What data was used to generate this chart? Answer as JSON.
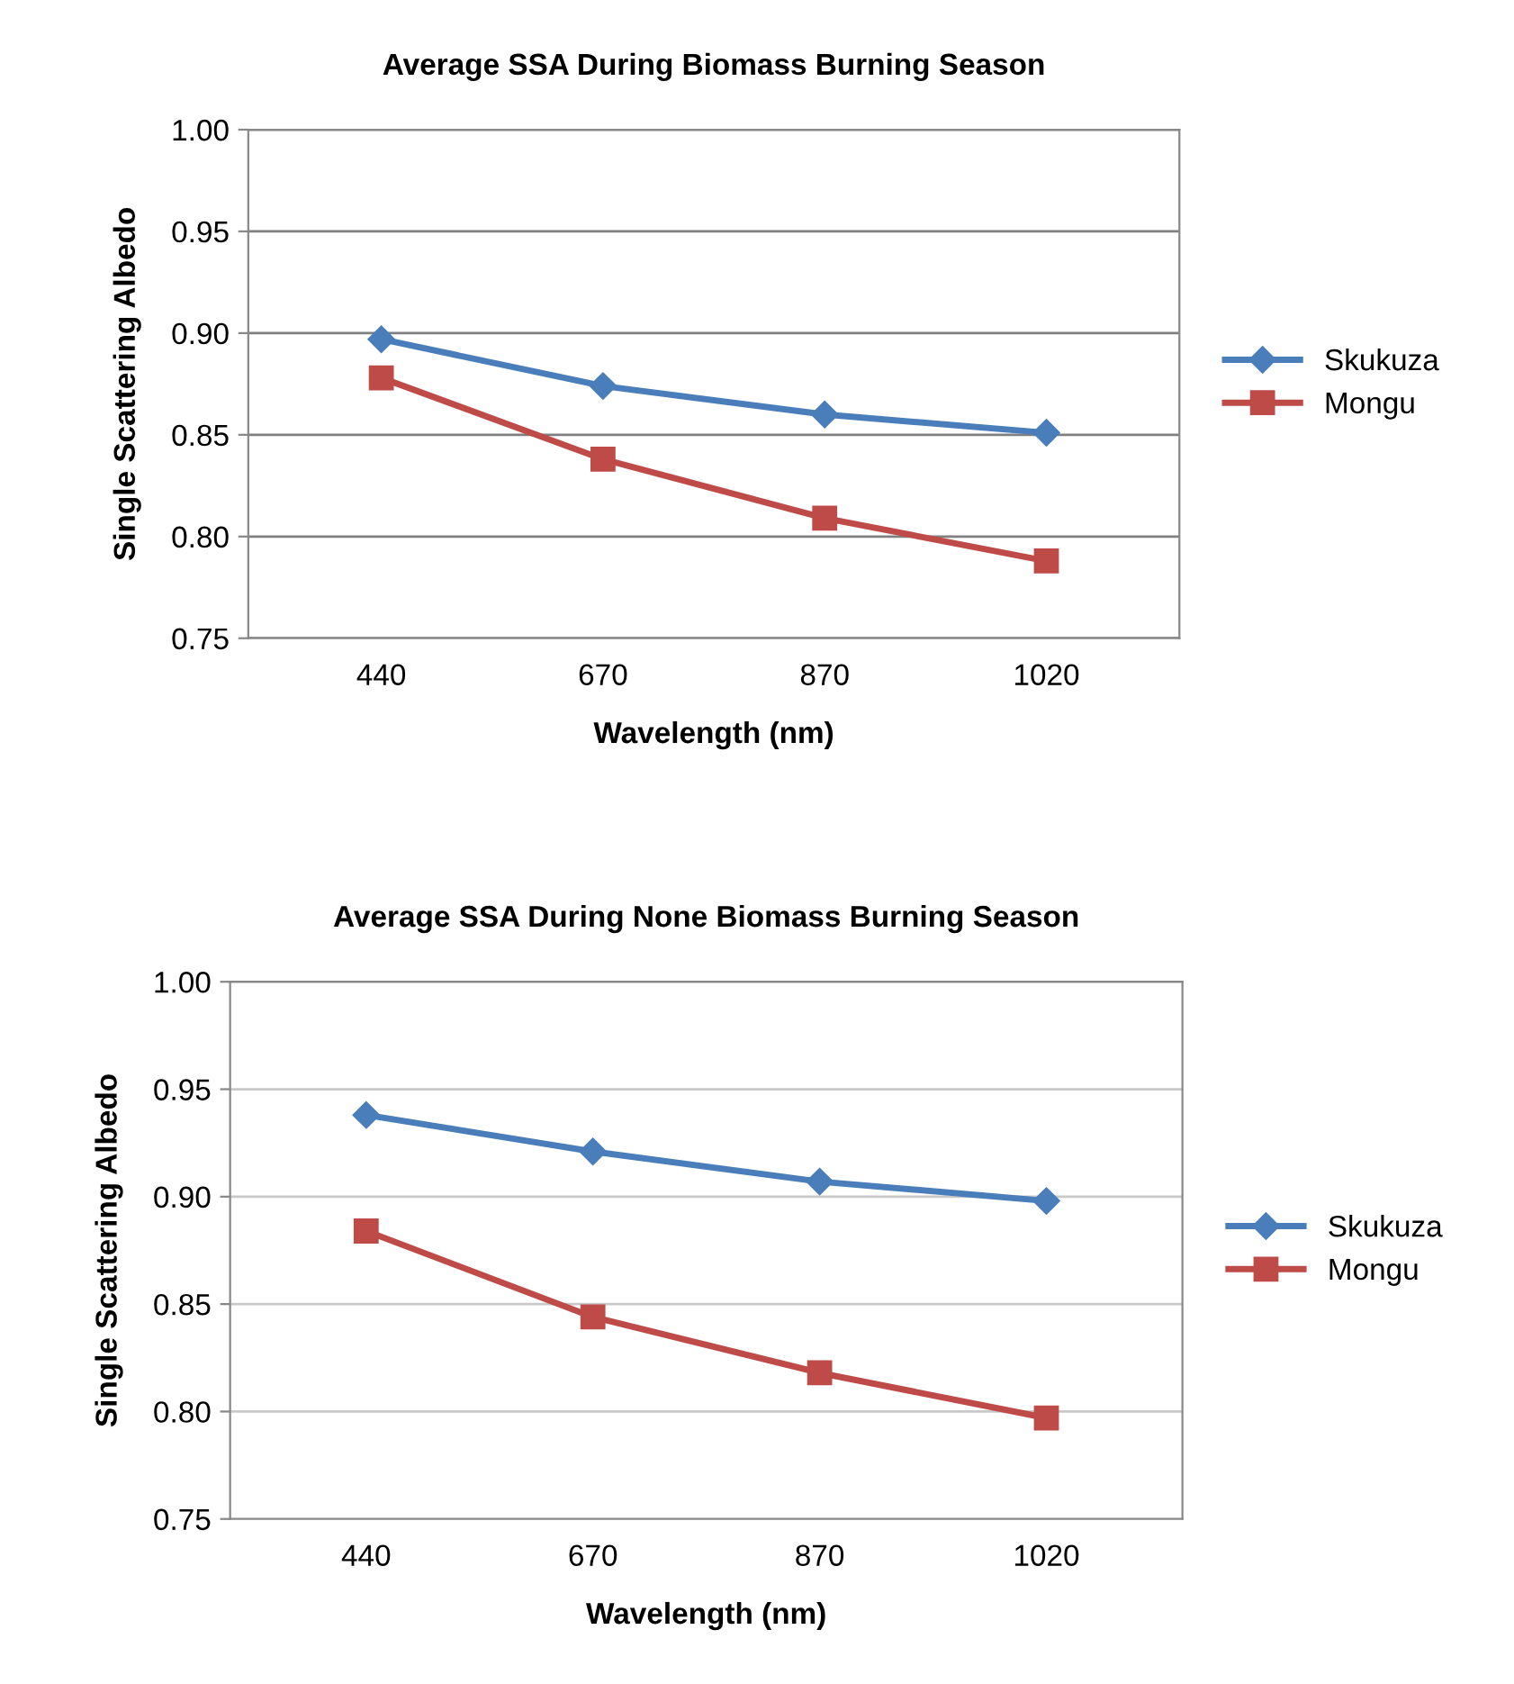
{
  "chart_data": [
    {
      "type": "line",
      "title": "Average SSA During Biomass Burning Season",
      "xlabel": "Wavelength (nm)",
      "ylabel": "Single Scattering Albedo",
      "categories": [
        "440",
        "670",
        "870",
        "1020"
      ],
      "series": [
        {
          "name": "Skukuza",
          "color": "#4a7ebb",
          "marker": "diamond",
          "values": [
            0.897,
            0.874,
            0.86,
            0.851
          ]
        },
        {
          "name": "Mongu",
          "color": "#be4b48",
          "marker": "square",
          "values": [
            0.878,
            0.838,
            0.809,
            0.788
          ]
        }
      ],
      "ylim": [
        0.75,
        1.0
      ],
      "yticks": [
        {
          "value": 0.75,
          "label": "0.75"
        },
        {
          "value": 0.8,
          "label": "0.80"
        },
        {
          "value": 0.85,
          "label": "0.85"
        },
        {
          "value": 0.9,
          "label": "0.90"
        },
        {
          "value": 0.95,
          "label": "0.95"
        },
        {
          "value": 1.0,
          "label": "1.00"
        }
      ],
      "grid": "y",
      "legend": "right"
    },
    {
      "type": "line",
      "title": "Average SSA During None Biomass Burning Season",
      "xlabel": "Wavelength (nm)",
      "ylabel": "Single Scattering Albedo",
      "categories": [
        "440",
        "670",
        "870",
        "1020"
      ],
      "series": [
        {
          "name": "Skukuza",
          "color": "#4a7ebb",
          "marker": "diamond",
          "values": [
            0.938,
            0.921,
            0.907,
            0.898
          ]
        },
        {
          "name": "Mongu",
          "color": "#be4b48",
          "marker": "square",
          "values": [
            0.884,
            0.844,
            0.818,
            0.797
          ]
        }
      ],
      "ylim": [
        0.75,
        1.0
      ],
      "yticks": [
        {
          "value": 0.75,
          "label": "0.75"
        },
        {
          "value": 0.8,
          "label": "0.80"
        },
        {
          "value": 0.85,
          "label": "0.85"
        },
        {
          "value": 0.9,
          "label": "0.90"
        },
        {
          "value": 0.95,
          "label": "0.95"
        },
        {
          "value": 1.0,
          "label": "1.00"
        }
      ],
      "grid": "y",
      "legend": "right"
    }
  ]
}
